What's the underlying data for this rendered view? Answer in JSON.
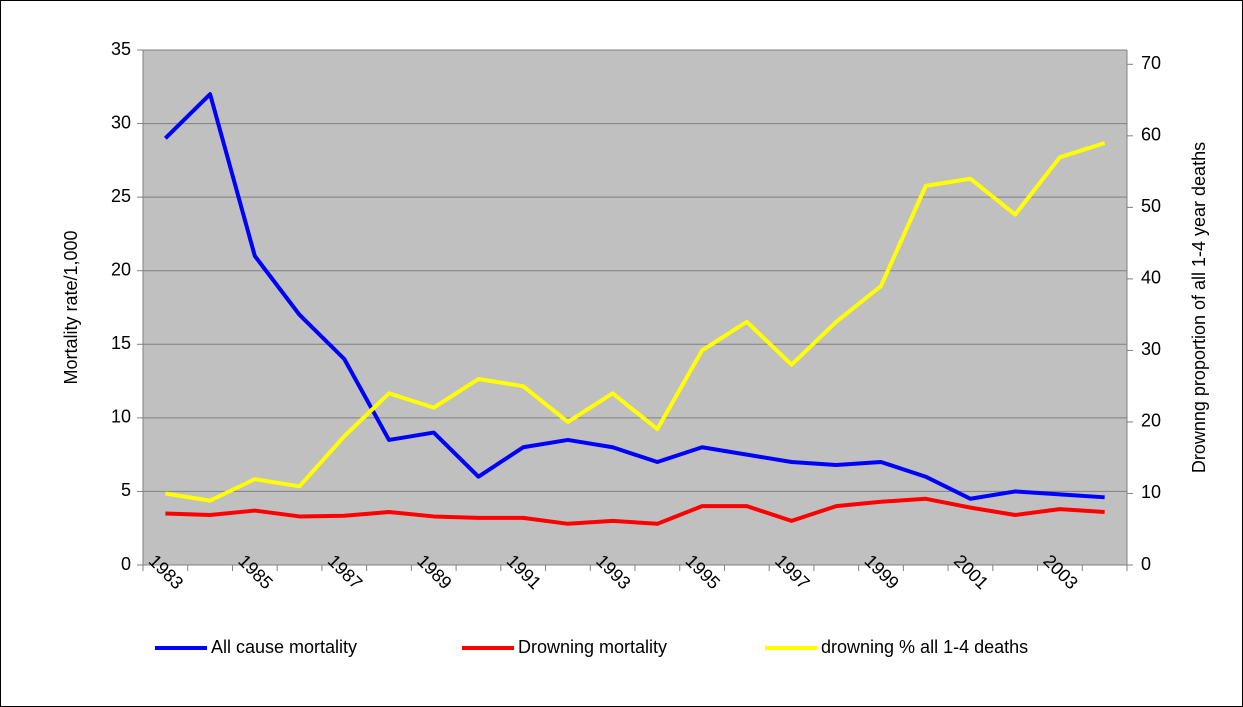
{
  "chart_data": {
    "type": "line",
    "categories": [
      "1983",
      null,
      "1985",
      null,
      "1987",
      null,
      "1989",
      null,
      "1991",
      null,
      "1993",
      null,
      "1995",
      null,
      "1997",
      null,
      "1999",
      null,
      "2001",
      null,
      "2003",
      null
    ],
    "series": [
      {
        "name": "All cause mortality",
        "color": "#0000ff",
        "values": [
          29,
          32,
          21,
          17,
          14,
          8.5,
          9,
          6,
          8,
          8.5,
          8,
          7,
          8,
          7.5,
          7,
          6.8,
          7,
          6,
          4.5,
          5,
          4.8,
          4.6
        ]
      },
      {
        "name": "Drowning mortality",
        "color": "#ff0000",
        "values": [
          3.5,
          3.4,
          3.7,
          3.3,
          3.35,
          3.6,
          3.3,
          3.2,
          3.2,
          2.8,
          3.0,
          2.8,
          4.0,
          4.0,
          3.0,
          4.0,
          4.3,
          4.5,
          3.9,
          3.4,
          3.8,
          3.6
        ]
      },
      {
        "name": "drowning % all 1-4 deaths",
        "color": "#ffff00",
        "axis": "y2",
        "values": [
          10,
          9,
          12,
          11,
          18,
          24,
          22,
          26,
          25,
          20,
          24,
          19,
          30,
          34,
          28,
          34,
          39,
          53,
          54,
          49,
          57,
          59
        ]
      }
    ],
    "ylabel": "Mortality rate/1,000",
    "y2label": "Drownng proportion of  all 1-4 year deaths",
    "ylim": [
      0,
      35
    ],
    "yticks": [
      0,
      5,
      10,
      15,
      20,
      25,
      30,
      35
    ],
    "y2lim": [
      0,
      72
    ],
    "y2ticks": [
      0,
      10,
      20,
      30,
      40,
      50,
      60,
      70
    ],
    "grid": true,
    "legend": "bottom",
    "background": "#c0c0c0"
  }
}
